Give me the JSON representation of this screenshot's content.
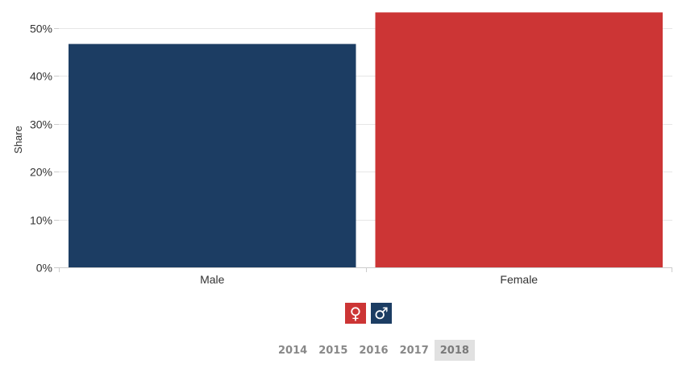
{
  "chart_data": {
    "type": "bar",
    "categories": [
      "Male",
      "Female"
    ],
    "values": [
      46.7,
      53.3
    ],
    "colors": [
      "#1c3d63",
      "#cc3535"
    ],
    "ylabel": "Share",
    "xlabel": "",
    "ylim": [
      0,
      50
    ],
    "yticks": [
      0,
      10,
      20,
      30,
      40,
      50
    ],
    "ytick_labels": [
      "0%",
      "10%",
      "20%",
      "30%",
      "40%",
      "50%"
    ],
    "grid": true
  },
  "legend_icons": [
    {
      "name": "female-icon",
      "glyph": "♀",
      "color": "#cc3535"
    },
    {
      "name": "male-icon",
      "glyph": "♂",
      "color": "#1c3d63"
    }
  ],
  "years": [
    "2014",
    "2015",
    "2016",
    "2017",
    "2018"
  ],
  "selected_year": "2018"
}
